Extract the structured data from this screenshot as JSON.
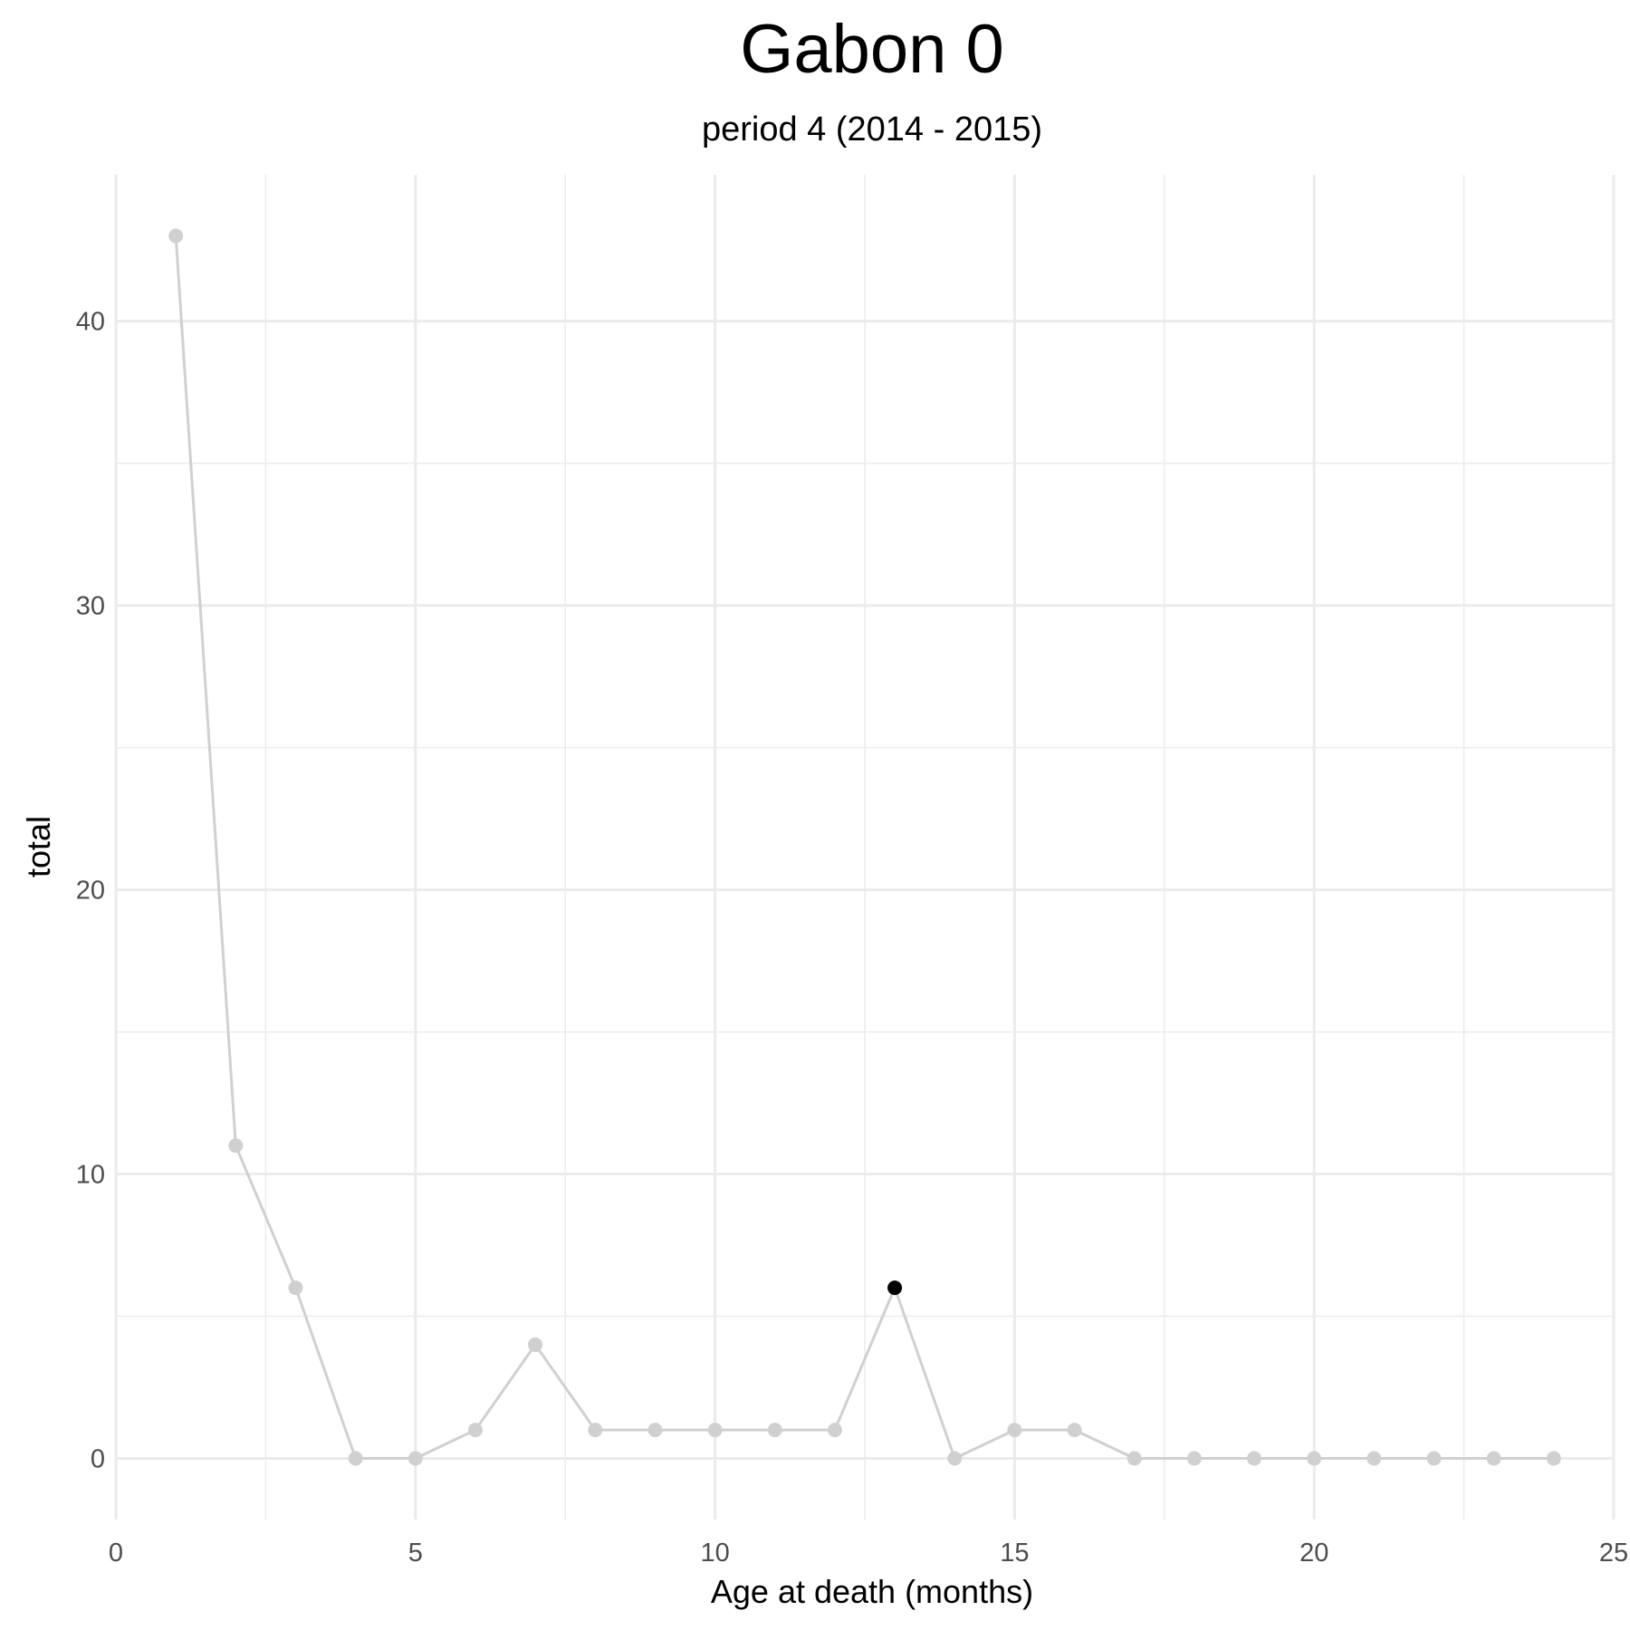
{
  "chart_data": {
    "type": "line",
    "title": "Gabon 0",
    "subtitle": "period 4 (2014 - 2015)",
    "xlabel": "Age at death (months)",
    "ylabel": "total",
    "xlim": [
      0,
      25
    ],
    "ylim": [
      -2.15,
      45.15
    ],
    "x_ticks": [
      0,
      5,
      10,
      15,
      20,
      25
    ],
    "y_ticks": [
      0,
      10,
      20,
      30,
      40
    ],
    "grid": true,
    "legend": "none",
    "series": [
      {
        "x": [
          1,
          2,
          3,
          4,
          5,
          6,
          7,
          8,
          9,
          10,
          11,
          12,
          13,
          14,
          15,
          16,
          17,
          18,
          19,
          20,
          21,
          22,
          23,
          24
        ],
        "values": [
          43,
          11,
          6,
          0,
          0,
          1,
          4,
          1,
          1,
          1,
          1,
          1,
          6,
          0,
          1,
          1,
          0,
          0,
          0,
          0,
          0,
          0,
          0,
          0
        ],
        "color": "#d0d0d0"
      }
    ],
    "highlight": {
      "x": 13,
      "value": 6,
      "color": "#000000"
    }
  }
}
